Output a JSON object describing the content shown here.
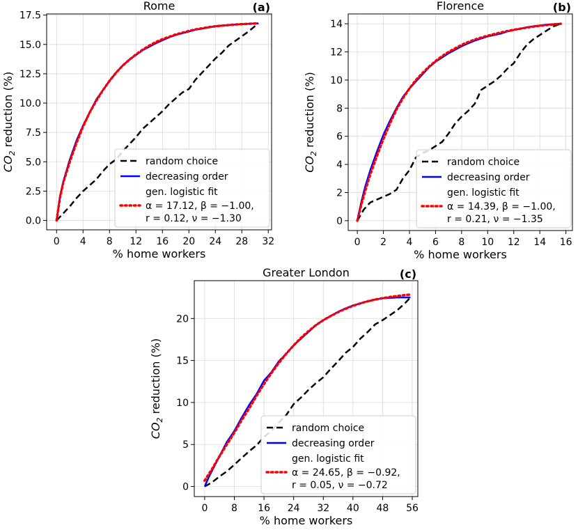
{
  "chart_data": [
    {
      "type": "line",
      "title": "Rome",
      "panel": "(a)",
      "xlabel": "% home workers",
      "ylabel_main": "CO",
      "ylabel_sub": "2",
      "ylabel_rest": " reduction (%)",
      "xlim": [
        -1.5,
        32.5
      ],
      "ylim": [
        -0.8,
        17.6
      ],
      "xticks": [
        0,
        4,
        8,
        12,
        16,
        20,
        24,
        28,
        32
      ],
      "yticks": [
        0.0,
        2.5,
        5.0,
        7.5,
        10.0,
        12.5,
        15.0,
        17.5
      ],
      "ytick_labels": [
        "0.0",
        "2.5",
        "5.0",
        "7.5",
        "10.0",
        "12.5",
        "15.0",
        "17.5"
      ],
      "grid": true,
      "legend": {
        "position": "lower-right",
        "entries": [
          "random choice",
          "decreasing order",
          "gen. logistic fit"
        ],
        "fit_params": [
          "α = 17.12, β = −1.00,",
          "r = 0.12, ν = −1.30"
        ]
      },
      "series": [
        {
          "name": "random choice",
          "style": "dashed",
          "color": "#000000",
          "x": [
            0,
            1,
            2,
            3,
            4,
            5,
            6,
            7,
            8,
            9,
            10,
            11,
            12,
            13,
            14,
            15,
            16,
            17,
            18,
            19,
            20,
            21,
            22,
            23,
            24,
            25,
            26,
            27,
            28,
            29,
            30.5
          ],
          "y": [
            0,
            0.6,
            1.2,
            1.9,
            2.5,
            3.0,
            3.5,
            4.2,
            4.8,
            5.2,
            5.9,
            6.5,
            7.1,
            7.8,
            8.3,
            8.8,
            9.3,
            9.9,
            10.4,
            10.9,
            11.2,
            12.0,
            12.6,
            13.2,
            13.8,
            14.3,
            14.9,
            15.3,
            15.7,
            16.1,
            16.8
          ]
        },
        {
          "name": "decreasing order",
          "style": "solid",
          "color": "#0000ff",
          "x": [
            0,
            0.5,
            1,
            2,
            3,
            4,
            5,
            6,
            7,
            8,
            9,
            10,
            11,
            12,
            13,
            14,
            15,
            16,
            17,
            18,
            19,
            20,
            21,
            22,
            23,
            24,
            25,
            26,
            27,
            28,
            29,
            30.5
          ],
          "y": [
            0,
            2.0,
            3.3,
            5.2,
            6.8,
            8.1,
            9.2,
            10.3,
            11.1,
            11.9,
            12.6,
            13.2,
            13.7,
            14.1,
            14.5,
            14.8,
            15.1,
            15.35,
            15.6,
            15.8,
            15.95,
            16.1,
            16.25,
            16.35,
            16.45,
            16.55,
            16.6,
            16.65,
            16.7,
            16.72,
            16.75,
            16.8
          ]
        },
        {
          "name": "gen. logistic fit",
          "style": "dotted",
          "color": "#ff0000",
          "x": [
            0,
            0.5,
            1,
            2,
            3,
            4,
            5,
            6,
            7,
            8,
            9,
            10,
            11,
            12,
            13,
            14,
            15,
            16,
            17,
            18,
            19,
            20,
            21,
            22,
            23,
            24,
            25,
            26,
            27,
            28,
            29,
            30.5
          ],
          "y": [
            0,
            1.9,
            3.2,
            5.0,
            6.6,
            8.0,
            9.2,
            10.2,
            11.1,
            11.9,
            12.6,
            13.2,
            13.7,
            14.15,
            14.55,
            14.9,
            15.2,
            15.45,
            15.65,
            15.85,
            16.0,
            16.15,
            16.28,
            16.38,
            16.47,
            16.55,
            16.6,
            16.65,
            16.7,
            16.73,
            16.76,
            16.8
          ]
        }
      ]
    },
    {
      "type": "line",
      "title": "Florence",
      "panel": "(b)",
      "xlabel": "% home workers",
      "ylabel_main": "CO",
      "ylabel_sub": "2",
      "ylabel_rest": " reduction (%)",
      "xlim": [
        -0.7,
        16.5
      ],
      "ylim": [
        -0.7,
        14.7
      ],
      "xticks": [
        0,
        2,
        4,
        6,
        8,
        10,
        12,
        14,
        16
      ],
      "yticks": [
        0,
        2,
        4,
        6,
        8,
        10,
        12,
        14
      ],
      "ytick_labels": [
        "0",
        "2",
        "4",
        "6",
        "8",
        "10",
        "12",
        "14"
      ],
      "grid": true,
      "legend": {
        "position": "lower-right",
        "entries": [
          "random choice",
          "decreasing order",
          "gen. logistic fit"
        ],
        "fit_params": [
          "α = 14.39, β = −1.00,",
          "r = 0.21, ν = −1.35"
        ]
      },
      "series": [
        {
          "name": "random choice",
          "style": "dashed",
          "color": "#000000",
          "x": [
            0,
            0.5,
            1,
            1.5,
            2,
            2.5,
            3,
            3.5,
            4,
            4.5,
            5,
            5.5,
            6,
            6.5,
            7,
            7.5,
            8,
            8.5,
            9,
            9.5,
            10,
            10.5,
            11,
            11.5,
            12,
            12.5,
            13,
            13.5,
            14,
            14.5,
            15,
            15.6
          ],
          "y": [
            0,
            0.8,
            1.3,
            1.5,
            1.7,
            1.9,
            2.2,
            3.0,
            3.6,
            4.5,
            4.8,
            5.0,
            5.3,
            5.6,
            6.2,
            6.9,
            7.4,
            7.8,
            8.3,
            9.3,
            9.6,
            9.9,
            10.3,
            10.8,
            11.2,
            11.9,
            12.5,
            12.9,
            13.2,
            13.5,
            13.8,
            14.0
          ]
        },
        {
          "name": "decreasing order",
          "style": "solid",
          "color": "#0000ff",
          "x": [
            0,
            0.3,
            0.6,
            1,
            1.5,
            2,
            2.5,
            3,
            3.5,
            4,
            4.5,
            5,
            5.5,
            6,
            6.5,
            7,
            7.5,
            8,
            8.5,
            9,
            9.5,
            10,
            10.5,
            11,
            11.5,
            12,
            12.5,
            13,
            13.5,
            14,
            14.5,
            15,
            15.6
          ],
          "y": [
            0,
            1.3,
            2.4,
            3.6,
            4.9,
            6.1,
            7.1,
            8.0,
            8.8,
            9.4,
            9.9,
            10.4,
            10.9,
            11.3,
            11.6,
            11.9,
            12.15,
            12.4,
            12.6,
            12.8,
            12.95,
            13.1,
            13.2,
            13.3,
            13.45,
            13.55,
            13.65,
            13.75,
            13.82,
            13.88,
            13.93,
            13.97,
            14.0
          ]
        },
        {
          "name": "gen. logistic fit",
          "style": "dotted",
          "color": "#ff0000",
          "x": [
            0,
            0.3,
            0.6,
            1,
            1.5,
            2,
            2.5,
            3,
            3.5,
            4,
            4.5,
            5,
            5.5,
            6,
            6.5,
            7,
            7.5,
            8,
            8.5,
            9,
            9.5,
            10,
            10.5,
            11,
            11.5,
            12,
            12.5,
            13,
            13.5,
            14,
            14.5,
            15,
            15.6
          ],
          "y": [
            0,
            1.1,
            2.1,
            3.3,
            4.6,
            5.8,
            6.9,
            7.9,
            8.7,
            9.4,
            10.0,
            10.5,
            10.95,
            11.35,
            11.7,
            12.0,
            12.25,
            12.5,
            12.7,
            12.88,
            13.02,
            13.15,
            13.27,
            13.38,
            13.48,
            13.57,
            13.65,
            13.73,
            13.8,
            13.86,
            13.91,
            13.95,
            14.0
          ]
        }
      ]
    },
    {
      "type": "line",
      "title": "Greater London",
      "panel": "(c)",
      "xlabel": "% home workers",
      "ylabel_main": "CO",
      "ylabel_sub": "2",
      "ylabel_rest": " reduction (%)",
      "xlim": [
        -2.8,
        57.5
      ],
      "ylim": [
        -1.2,
        24.5
      ],
      "xticks": [
        0,
        8,
        16,
        24,
        32,
        40,
        48,
        56
      ],
      "yticks": [
        0,
        5,
        10,
        15,
        20
      ],
      "ytick_labels": [
        "0",
        "5",
        "10",
        "15",
        "20"
      ],
      "grid": true,
      "legend": {
        "position": "lower-right",
        "entries": [
          "random choice",
          "decreasing order",
          "gen. logistic fit"
        ],
        "fit_params": [
          "α = 24.65, β = −0.92,",
          "r = 0.05, ν = −0.72"
        ]
      },
      "series": [
        {
          "name": "random choice",
          "style": "dashed",
          "color": "#000000",
          "x": [
            0,
            2,
            4,
            6,
            8,
            10,
            12,
            14,
            16,
            18,
            20,
            22,
            24,
            26,
            28,
            30,
            32,
            34,
            36,
            38,
            40,
            42,
            44,
            46,
            48,
            50,
            52,
            54,
            55.5
          ],
          "y": [
            0,
            0.5,
            1.2,
            1.8,
            2.6,
            3.4,
            4.2,
            4.9,
            5.9,
            6.6,
            7.6,
            8.5,
            9.8,
            10.6,
            11.5,
            12.3,
            13.0,
            14.0,
            14.9,
            15.9,
            16.6,
            17.6,
            18.4,
            19.3,
            19.8,
            20.4,
            21.0,
            21.8,
            22.5
          ]
        },
        {
          "name": "decreasing order",
          "style": "solid",
          "color": "#0000ff",
          "x": [
            0,
            1,
            2,
            4,
            6,
            8,
            10,
            12,
            14,
            16,
            18,
            20,
            22,
            24,
            26,
            28,
            30,
            32,
            34,
            36,
            38,
            40,
            42,
            44,
            46,
            48,
            50,
            52,
            54,
            55.5
          ],
          "y": [
            0,
            1.0,
            1.9,
            3.6,
            5.3,
            6.6,
            8.2,
            9.7,
            11.0,
            12.6,
            13.6,
            14.9,
            15.8,
            16.8,
            17.6,
            18.4,
            19.2,
            19.8,
            20.3,
            20.8,
            21.2,
            21.55,
            21.8,
            22.05,
            22.25,
            22.4,
            22.45,
            22.5,
            22.5,
            22.5
          ]
        },
        {
          "name": "gen. logistic fit",
          "style": "dotted",
          "color": "#ff0000",
          "x": [
            0,
            1,
            2,
            4,
            6,
            8,
            10,
            12,
            14,
            16,
            18,
            20,
            22,
            24,
            26,
            28,
            30,
            32,
            34,
            36,
            38,
            40,
            42,
            44,
            46,
            48,
            50,
            52,
            54,
            55.5
          ],
          "y": [
            0.7,
            1.4,
            2.1,
            3.6,
            5.0,
            6.4,
            7.9,
            9.3,
            10.8,
            12.2,
            13.5,
            14.7,
            15.8,
            16.8,
            17.7,
            18.5,
            19.2,
            19.8,
            20.3,
            20.75,
            21.15,
            21.5,
            21.8,
            22.05,
            22.25,
            22.42,
            22.56,
            22.68,
            22.78,
            22.85
          ]
        }
      ]
    }
  ]
}
